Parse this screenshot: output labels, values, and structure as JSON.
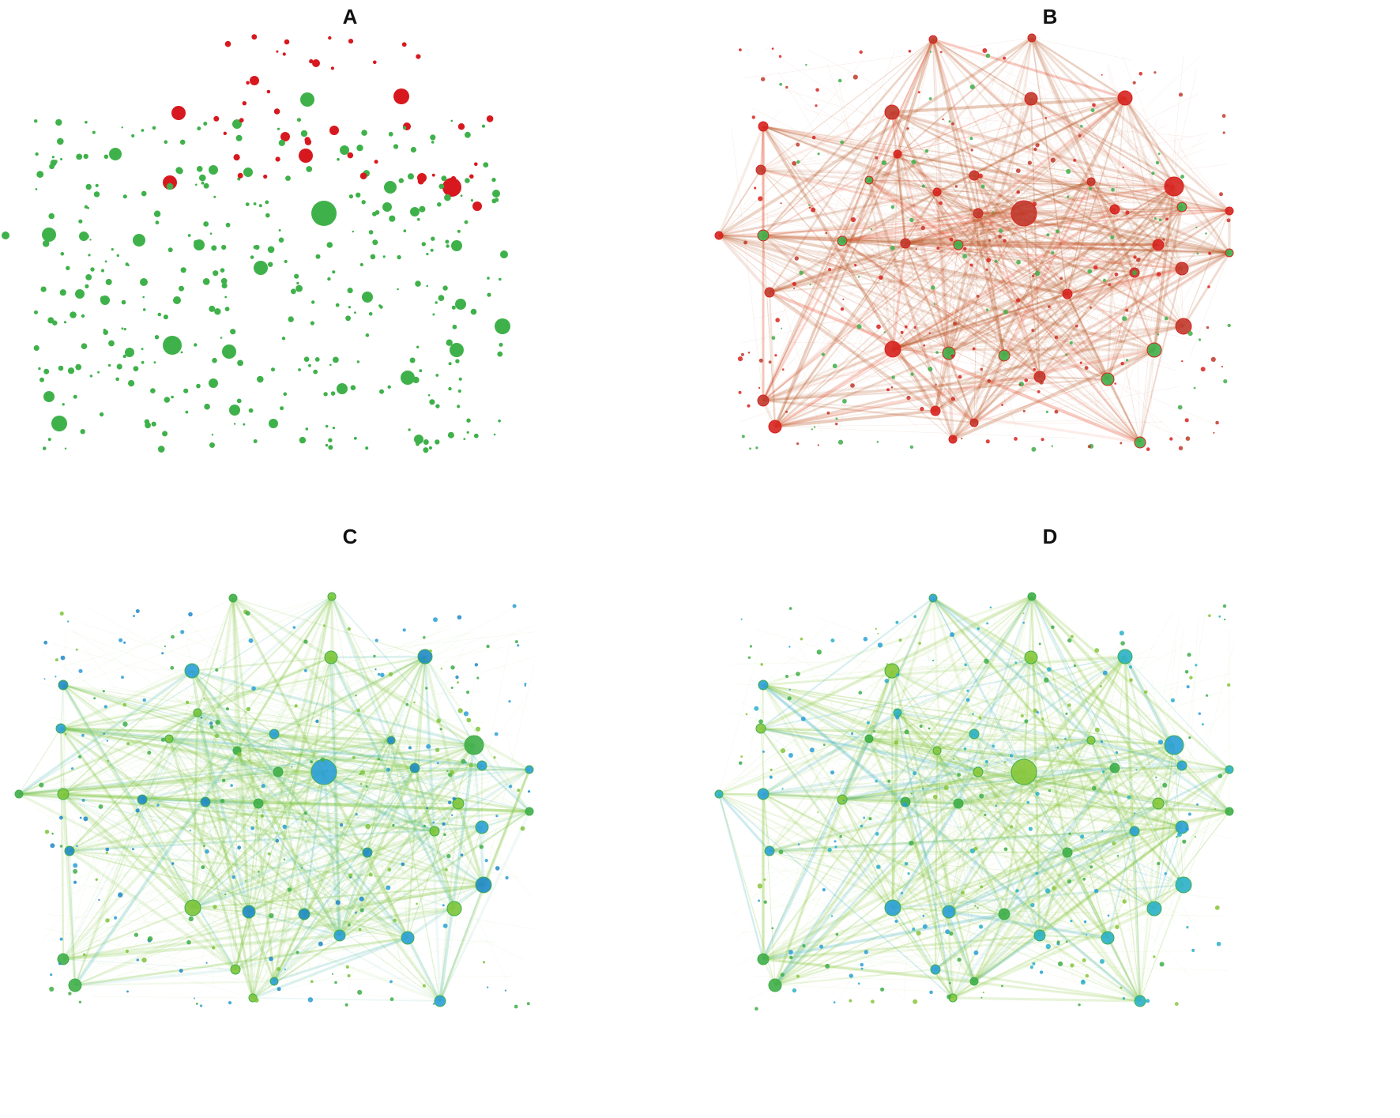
{
  "figure": {
    "panels": [
      {
        "label": "A",
        "style": "clusters"
      },
      {
        "label": "B",
        "style": "network",
        "edge_color": "#b5521f",
        "edge_tint": "#e84a2a",
        "node_colors": [
          "#d7231f",
          "#3fae49",
          "#c0392b"
        ]
      },
      {
        "label": "C",
        "style": "network",
        "edge_color": "#7cc43a",
        "edge_tint": "#5bbfb5",
        "node_colors": [
          "#3fae49",
          "#2a9fd6",
          "#7cc43a",
          "#1e88c7"
        ]
      },
      {
        "label": "D",
        "style": "network",
        "edge_color": "#86c63a",
        "edge_tint": "#4fb6c4",
        "node_colors": [
          "#3fae49",
          "#2a9fd6",
          "#86c63a",
          "#2ab0c8"
        ]
      }
    ],
    "colors": {
      "green": "#3fb14a",
      "red": "#d7191f"
    }
  }
}
